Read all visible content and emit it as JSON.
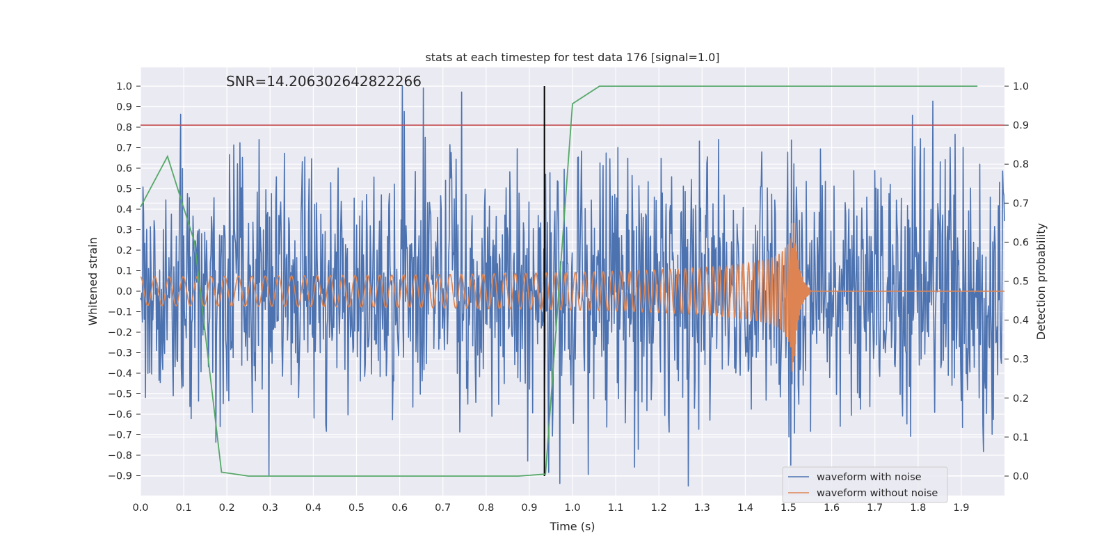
{
  "chart_data": {
    "type": "line",
    "title": "stats at each timestep for test data 176 [signal=1.0]",
    "annotation": "SNR=14.206302642822266",
    "xlabel": "Time (s)",
    "ylabel_left": "Whitened strain",
    "ylabel_right": "Detection probability",
    "xlim": [
      0.0,
      2.0
    ],
    "ylim_left": [
      -1.0,
      1.1
    ],
    "ylim_right": [
      -0.05,
      1.05
    ],
    "x_ticks": [
      "0.0",
      "0.1",
      "0.2",
      "0.3",
      "0.4",
      "0.5",
      "0.6",
      "0.7",
      "0.8",
      "0.9",
      "1.0",
      "1.1",
      "1.2",
      "1.3",
      "1.4",
      "1.5",
      "1.6",
      "1.7",
      "1.8",
      "1.9"
    ],
    "y_left_ticks": [
      "1.0",
      "0.9",
      "0.8",
      "0.7",
      "0.6",
      "0.5",
      "0.4",
      "0.3",
      "0.2",
      "0.1",
      "0.0",
      "−0.1",
      "−0.2",
      "−0.3",
      "−0.4",
      "−0.5",
      "−0.6",
      "−0.7",
      "−0.8",
      "−0.9"
    ],
    "y_right_ticks": [
      "1.0",
      "0.9",
      "0.8",
      "0.7",
      "0.6",
      "0.5",
      "0.4",
      "0.3",
      "0.2",
      "0.1",
      "0.0"
    ],
    "threshold_left": 0.81,
    "event_time": 0.935,
    "series": [
      {
        "name": "waveform with noise",
        "color": "#4c72b0",
        "axis": "left",
        "kind": "noise",
        "t_range": [
          0.0,
          2.0
        ],
        "n_samples": 1400,
        "approx_std": 0.33
      },
      {
        "name": "waveform without noise",
        "color": "#dd8452",
        "axis": "left",
        "kind": "chirp",
        "merger_time": 1.51,
        "start_amplitude": 0.07,
        "peak_amplitude": 0.43,
        "start_frequency_hz": 30
      },
      {
        "name": "detection probability",
        "color": "#55a868",
        "axis": "right",
        "x": [
          0.0,
          0.0625,
          0.125,
          0.1875,
          0.25,
          0.3125,
          0.375,
          0.4375,
          0.5,
          0.5625,
          0.625,
          0.6875,
          0.75,
          0.8125,
          0.875,
          0.9375,
          1.0,
          1.0625,
          1.125,
          1.1875,
          1.25,
          1.3125,
          1.375,
          1.4375,
          1.5,
          1.5625,
          1.625,
          1.6875,
          1.75,
          1.8125,
          1.875,
          1.9375
        ],
        "values": [
          0.69,
          0.82,
          0.6,
          0.01,
          0.0,
          0.0,
          0.0,
          0.0,
          0.0,
          0.0,
          0.0,
          0.0,
          0.0,
          0.0,
          0.0,
          0.005,
          0.955,
          1.0,
          1.0,
          1.0,
          1.0,
          1.0,
          1.0,
          1.0,
          1.0,
          1.0,
          1.0,
          1.0,
          1.0,
          1.0,
          1.0,
          1.0
        ]
      }
    ],
    "threshold_color": "#c44e52",
    "event_color": "#000000",
    "legend_position": "lower-right",
    "legend": [
      "waveform with noise",
      "waveform without noise"
    ],
    "grid": true
  }
}
